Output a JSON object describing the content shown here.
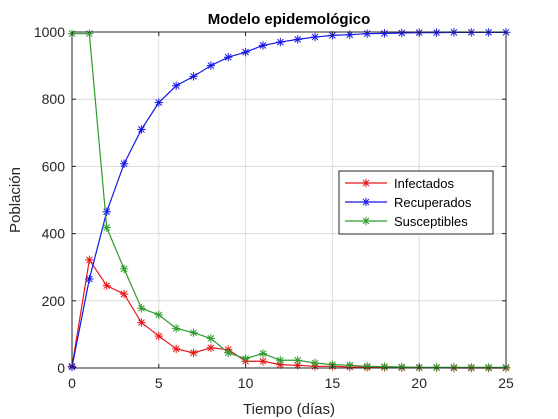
{
  "chart_data": {
    "type": "line",
    "title": "Modelo epidemológico",
    "xlabel": "Tiempo (días)",
    "ylabel": "Población",
    "xlim": [
      0,
      25
    ],
    "ylim": [
      0,
      1000
    ],
    "xticks": [
      "0",
      "5",
      "10",
      "15",
      "20",
      "25"
    ],
    "yticks": [
      "0",
      "200",
      "400",
      "600",
      "800",
      "1000"
    ],
    "grid": true,
    "legend_position": "center-right",
    "marker": "asterisk",
    "x": [
      0,
      1,
      2,
      3,
      4,
      5,
      6,
      7,
      8,
      9,
      10,
      11,
      12,
      13,
      14,
      15,
      16,
      17,
      18,
      19,
      20,
      21,
      22,
      23,
      24,
      25
    ],
    "series": [
      {
        "name": "Infectados",
        "color": "#e8161a",
        "values": [
          5,
          322,
          245,
          220,
          135,
          95,
          57,
          45,
          60,
          55,
          20,
          20,
          10,
          8,
          5,
          5,
          3,
          2,
          2,
          1,
          1,
          1,
          0,
          0,
          0,
          0
        ]
      },
      {
        "name": "Recuperados",
        "color": "#1418e6",
        "values": [
          3,
          265,
          465,
          608,
          710,
          790,
          840,
          868,
          900,
          925,
          940,
          960,
          970,
          978,
          985,
          990,
          992,
          995,
          996,
          997,
          998,
          998,
          999,
          999,
          999,
          999
        ]
      },
      {
        "name": "Susceptibles",
        "color": "#2e9c2e",
        "values": [
          995,
          995,
          418,
          295,
          178,
          158,
          118,
          105,
          88,
          45,
          28,
          43,
          23,
          23,
          15,
          10,
          8,
          5,
          4,
          3,
          2,
          2,
          2,
          2,
          2,
          2
        ]
      }
    ]
  }
}
